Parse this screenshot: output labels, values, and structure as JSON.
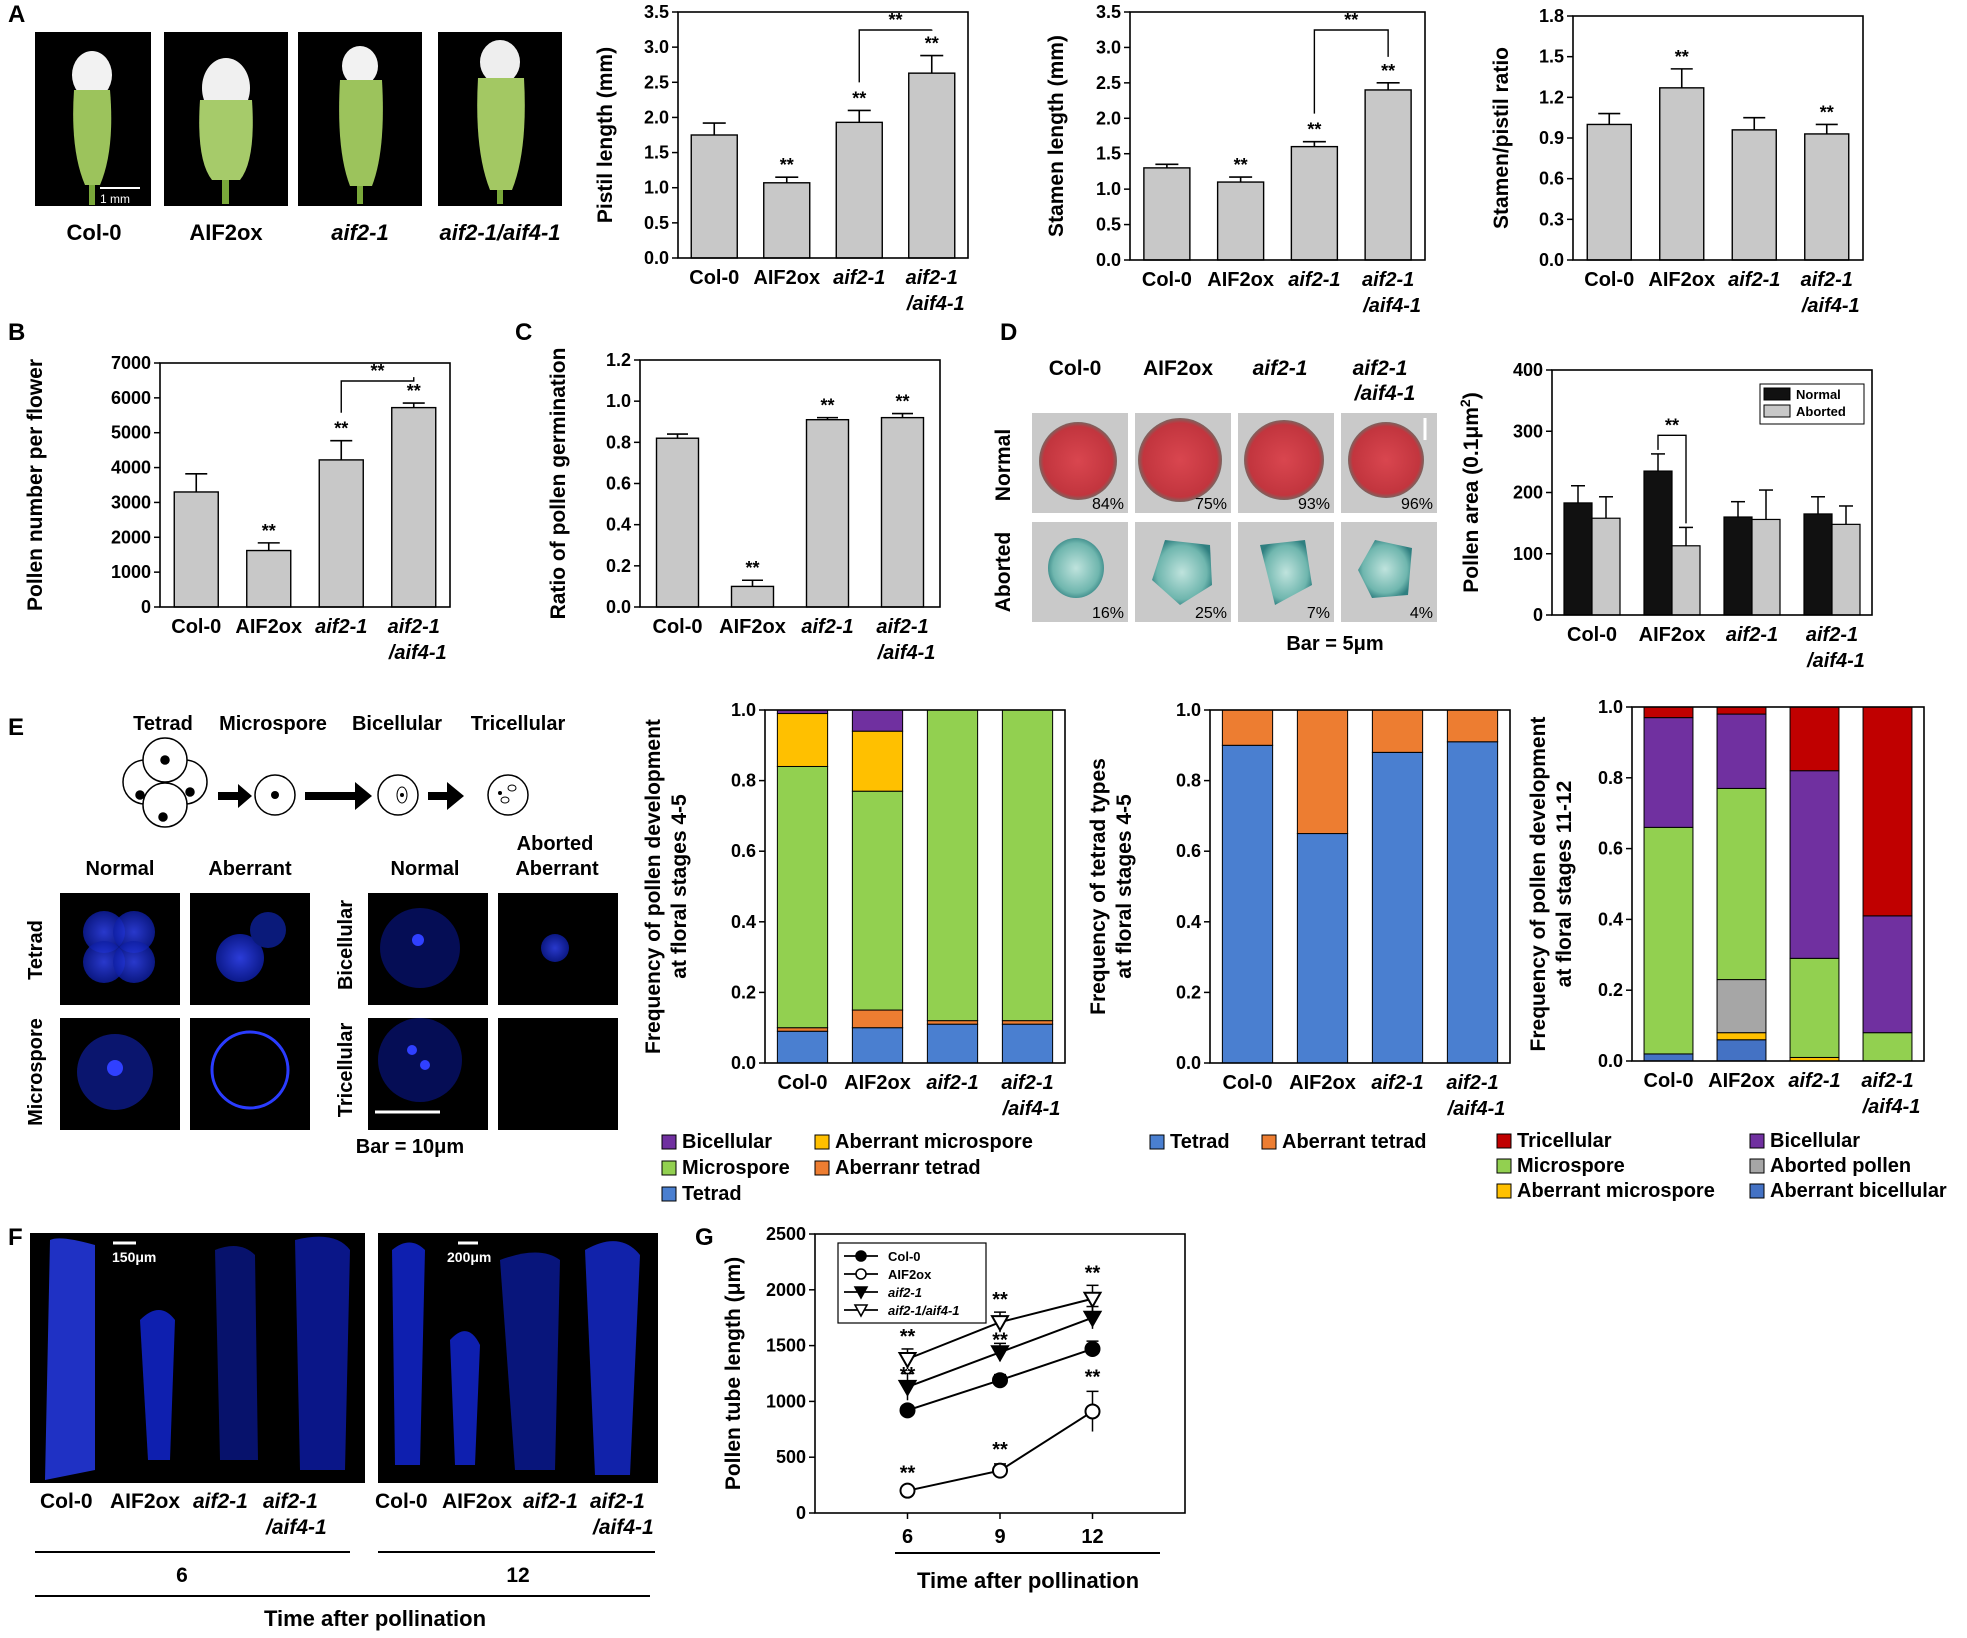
{
  "colors": {
    "bar_gray": "#c8c8c8",
    "black": "#111111",
    "tetrad": "#4a7fd0",
    "microspore": "#92d050",
    "aberrant_microspore": "#ffc000",
    "aberrant_tetrad": "#ed7d31",
    "bicellular": "#7030a0",
    "tricellular": "#c00000",
    "aborted_pollen": "#a6a6a6",
    "aberrant_bicellular": "#4472c4",
    "confocal_blue": "#1a2bd6"
  },
  "panel_letters": [
    "A",
    "B",
    "C",
    "D",
    "E",
    "F",
    "G"
  ],
  "genotypes": [
    "Col-0",
    "AIF2ox",
    "aif2-1",
    "aif2-1",
    "/aif4-1"
  ],
  "panel_a": {
    "photo_labels": [
      "Col-0",
      "AIF2ox",
      "aif2-1",
      "aif2-1/aif4-1"
    ],
    "scale_bar": "1 mm"
  },
  "panel_d": {
    "col_labels": [
      "Col-0",
      "AIF2ox",
      "aif2-1",
      "aif2-1",
      "/aif4-1"
    ],
    "row_labels": [
      "Normal",
      "Aborted"
    ],
    "normal_pct": [
      "84%",
      "75%",
      "93%",
      "96%"
    ],
    "aborted_pct": [
      "16%",
      "25%",
      "7%",
      "4%"
    ],
    "bar_label": "Bar = 5μm"
  },
  "panel_e": {
    "stages": [
      "Tetrad",
      "Microspore",
      "Bicellular",
      "Tricellular"
    ],
    "normal": "Normal",
    "aberrant": "Aberrant",
    "aborted_aberrant_1": "Aborted",
    "aborted_aberrant_2": "Aberrant",
    "row_tetrad": "Tetrad",
    "row_microspore": "Microspore",
    "row_bicellular": "Bicellular",
    "row_tricellular": "Tricellular",
    "bar_label": "Bar = 10μm"
  },
  "panel_f": {
    "scale_a": "150μm",
    "scale_b": "200μm",
    "groups": [
      "6",
      "12"
    ],
    "x_title": "Time after pollination"
  },
  "significance": "**",
  "chart_data": [
    {
      "id": "pistil",
      "type": "bar",
      "categories": [
        "Col-0",
        "AIF2ox",
        "aif2-1",
        "aif2-1/aif4-1"
      ],
      "values": [
        1.75,
        1.07,
        1.93,
        2.63
      ],
      "errors": [
        0.17,
        0.08,
        0.17,
        0.25
      ],
      "sig": [
        "",
        "**",
        "**",
        "**"
      ],
      "ylabel": "Pistil length (mm)",
      "ylim": [
        0,
        3.5
      ],
      "yticks": [
        "0.0",
        "0.5",
        "1.0",
        "1.5",
        "2.0",
        "2.5",
        "3.0",
        "3.5"
      ],
      "bracket": [
        2,
        3
      ]
    },
    {
      "id": "stamen",
      "type": "bar",
      "categories": [
        "Col-0",
        "AIF2ox",
        "aif2-1",
        "aif2-1/aif4-1"
      ],
      "values": [
        1.3,
        1.1,
        1.6,
        2.4
      ],
      "errors": [
        0.05,
        0.07,
        0.07,
        0.1
      ],
      "sig": [
        "",
        "**",
        "**",
        "**"
      ],
      "ylabel": "Stamen length (mm)",
      "ylim": [
        0,
        3.5
      ],
      "yticks": [
        "0.0",
        "0.5",
        "1.0",
        "1.5",
        "2.0",
        "2.5",
        "3.0",
        "3.5"
      ],
      "bracket": [
        2,
        3
      ]
    },
    {
      "id": "ratio",
      "type": "bar",
      "categories": [
        "Col-0",
        "AIF2ox",
        "aif2-1",
        "aif2-1/aif4-1"
      ],
      "values": [
        1.0,
        1.27,
        0.96,
        0.93
      ],
      "errors": [
        0.08,
        0.14,
        0.09,
        0.07
      ],
      "sig": [
        "",
        "**",
        "",
        "**"
      ],
      "ylabel": "Stamen/pistil ratio",
      "ylim": [
        0,
        1.8
      ],
      "yticks": [
        "0.0",
        "0.3",
        "0.6",
        "0.9",
        "1.2",
        "1.5",
        "1.8"
      ]
    },
    {
      "id": "pollen_number",
      "type": "bar",
      "categories": [
        "Col-0",
        "AIF2ox",
        "aif2-1",
        "aif2-1/aif4-1"
      ],
      "values": [
        3300,
        1620,
        4220,
        5720
      ],
      "errors": [
        520,
        220,
        550,
        130
      ],
      "sig": [
        "",
        "**",
        "**",
        "**"
      ],
      "ylabel": "Pollen number per flower",
      "ylim": [
        0,
        7000
      ],
      "yticks": [
        "0",
        "1000",
        "2000",
        "3000",
        "4000",
        "5000",
        "6000",
        "7000"
      ],
      "bracket": [
        2,
        3
      ]
    },
    {
      "id": "germination",
      "type": "bar",
      "categories": [
        "Col-0",
        "AIF2ox",
        "aif2-1",
        "aif2-1/aif4-1"
      ],
      "values": [
        0.82,
        0.1,
        0.91,
        0.92
      ],
      "errors": [
        0.02,
        0.03,
        0.01,
        0.02
      ],
      "sig": [
        "",
        "**",
        "**",
        "**"
      ],
      "ylabel": "Ratio of pollen germination",
      "ylim": [
        0,
        1.2
      ],
      "yticks": [
        "0.0",
        "0.2",
        "0.4",
        "0.6",
        "0.8",
        "1.0",
        "1.2"
      ]
    },
    {
      "id": "pollen_area",
      "type": "bar",
      "categories": [
        "Col-0",
        "AIF2ox",
        "aif2-1",
        "aif2-1/aif4-1"
      ],
      "series": [
        {
          "name": "Normal",
          "values": [
            183,
            235,
            160,
            165
          ],
          "errors": [
            28,
            28,
            25,
            28
          ]
        },
        {
          "name": "Aborted",
          "values": [
            158,
            113,
            156,
            148
          ],
          "errors": [
            35,
            30,
            48,
            30
          ]
        }
      ],
      "ylabel": "Pollen area (0.1μm",
      "ylabel_sup": "2",
      "ylabel_close": ")",
      "ylim": [
        0,
        400
      ],
      "yticks": [
        "0",
        "100",
        "200",
        "300",
        "400"
      ]
    },
    {
      "id": "pollen_dev_4_5",
      "type": "bar",
      "stacked": true,
      "categories": [
        "Col-0",
        "AIF2ox",
        "aif2-1",
        "aif2-1/aif4-1"
      ],
      "ylabel": "Frequency of pollen development",
      "ylabel2": "at floral stages 4-5",
      "ylim": [
        0,
        1.0
      ],
      "yticks": [
        "0.0",
        "0.2",
        "0.4",
        "0.6",
        "0.8",
        "1.0"
      ],
      "series": [
        {
          "name": "Tetrad",
          "color": "#4a7fd0",
          "values": [
            0.09,
            0.1,
            0.11,
            0.11
          ]
        },
        {
          "name": "Aberranr tetrad",
          "color": "#ed7d31",
          "values": [
            0.01,
            0.05,
            0.01,
            0.01
          ]
        },
        {
          "name": "Microspore",
          "color": "#92d050",
          "values": [
            0.74,
            0.62,
            0.88,
            0.88
          ]
        },
        {
          "name": "Aberrant microspore",
          "color": "#ffc000",
          "values": [
            0.15,
            0.17,
            0.0,
            0.0
          ]
        },
        {
          "name": "Bicellular",
          "color": "#7030a0",
          "values": [
            0.01,
            0.06,
            0.0,
            0.0
          ]
        }
      ],
      "legend": [
        "Bicellular",
        "Aberrant microspore",
        "Microspore",
        "Aberranr tetrad",
        "Tetrad"
      ]
    },
    {
      "id": "tetrad_types",
      "type": "bar",
      "stacked": true,
      "categories": [
        "Col-0",
        "AIF2ox",
        "aif2-1",
        "aif2-1/aif4-1"
      ],
      "ylabel": "Frequency of tetrad types",
      "ylabel2": "at floral stages 4-5",
      "ylim": [
        0,
        1.0
      ],
      "yticks": [
        "0.0",
        "0.2",
        "0.4",
        "0.6",
        "0.8",
        "1.0"
      ],
      "series": [
        {
          "name": "Tetrad",
          "color": "#4a7fd0",
          "values": [
            0.9,
            0.65,
            0.88,
            0.91
          ]
        },
        {
          "name": "Aberrant tetrad",
          "color": "#ed7d31",
          "values": [
            0.1,
            0.35,
            0.12,
            0.09
          ]
        }
      ],
      "legend": [
        "Tetrad",
        "Aberrant tetrad"
      ]
    },
    {
      "id": "pollen_dev_11_12",
      "type": "bar",
      "stacked": true,
      "categories": [
        "Col-0",
        "AIF2ox",
        "aif2-1",
        "aif2-1/aif4-1"
      ],
      "ylabel": "Frequency of pollen development",
      "ylabel2": "at floral stages 11-12",
      "ylim": [
        0,
        1.0
      ],
      "yticks": [
        "0.0",
        "0.2",
        "0.4",
        "0.6",
        "0.8",
        "1.0"
      ],
      "series": [
        {
          "name": "Aberrant bicellular",
          "color": "#4472c4",
          "values": [
            0.02,
            0.06,
            0.0,
            0.0
          ]
        },
        {
          "name": "Aberrant microspore",
          "color": "#ffc000",
          "values": [
            0.0,
            0.02,
            0.01,
            0.0
          ]
        },
        {
          "name": "Aborted pollen",
          "color": "#a6a6a6",
          "values": [
            0.0,
            0.15,
            0.0,
            0.0
          ]
        },
        {
          "name": "Microspore",
          "color": "#92d050",
          "values": [
            0.64,
            0.54,
            0.28,
            0.08
          ]
        },
        {
          "name": "Bicellular",
          "color": "#7030a0",
          "values": [
            0.31,
            0.21,
            0.53,
            0.33
          ]
        },
        {
          "name": "Tricellular",
          "color": "#c00000",
          "values": [
            0.03,
            0.02,
            0.18,
            0.59
          ]
        }
      ],
      "legend": [
        "Tricellular",
        "Bicellular",
        "Microspore",
        "Aborted pollen",
        "Aberrant microspore",
        "Aberrant bicellular"
      ]
    },
    {
      "id": "pollen_tube",
      "type": "line",
      "x": [
        6,
        9,
        12
      ],
      "xticks": [
        "6",
        "9",
        "12"
      ],
      "xlabel": "Time after pollination",
      "ylabel": "Pollen tube length (μm)",
      "ylim": [
        0,
        2500
      ],
      "yticks": [
        "0",
        "500",
        "1000",
        "1500",
        "2000",
        "2500"
      ],
      "series": [
        {
          "name": "Col-0",
          "marker": "filled-circle",
          "values": [
            920,
            1190,
            1470
          ],
          "errors": [
            40,
            50,
            70
          ]
        },
        {
          "name": "AIF2ox",
          "marker": "open-circle",
          "values": [
            200,
            380,
            910
          ],
          "errors": [
            30,
            60,
            180
          ]
        },
        {
          "name": "aif2-1",
          "marker": "filled-triangle-down",
          "values": [
            1130,
            1440,
            1750
          ],
          "errors": [
            120,
            80,
            100
          ]
        },
        {
          "name": "aif2-1/aif4-1",
          "marker": "open-triangle-down",
          "values": [
            1380,
            1710,
            1920
          ],
          "errors": [
            90,
            90,
            120
          ]
        }
      ],
      "sig_top": [
        "**",
        "**",
        "**"
      ],
      "sig_mid": [
        "**",
        "**",
        ""
      ],
      "sig_low": [
        "**",
        "**",
        "**"
      ]
    }
  ]
}
